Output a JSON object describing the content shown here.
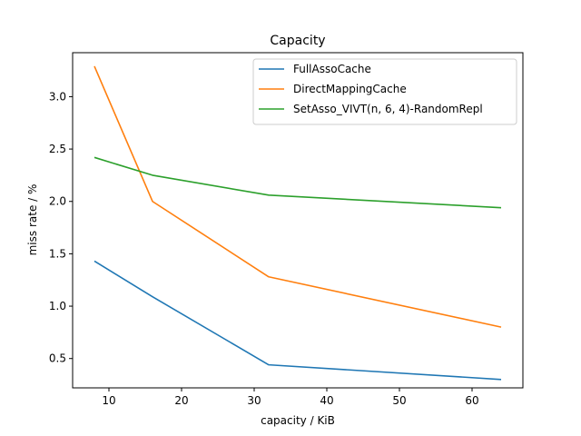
{
  "chart_data": {
    "type": "line",
    "title": "Capacity",
    "xlabel": "capacity / KiB",
    "ylabel": "miss rate / %",
    "xlim": [
      5,
      67
    ],
    "ylim": [
      0.22,
      3.42
    ],
    "xticks": [
      10,
      20,
      30,
      40,
      50,
      60
    ],
    "yticks": [
      0.5,
      1.0,
      1.5,
      2.0,
      2.5,
      3.0
    ],
    "ytick_labels": [
      "0.5",
      "1.0",
      "1.5",
      "2.0",
      "2.5",
      "3.0"
    ],
    "grid": false,
    "legend_position": "top-right",
    "x": [
      8,
      16,
      32,
      64
    ],
    "series": [
      {
        "name": "FullAssoCache",
        "color": "#1f77b4",
        "values": [
          1.43,
          1.09,
          0.44,
          0.3
        ]
      },
      {
        "name": "DirectMappingCache",
        "color": "#ff7f0e",
        "values": [
          3.29,
          2.0,
          1.28,
          0.8
        ]
      },
      {
        "name": "SetAsso_VIVT(n, 6, 4)-RandomRepl",
        "color": "#2ca02c",
        "values": [
          2.42,
          2.25,
          2.06,
          1.94
        ]
      }
    ]
  }
}
